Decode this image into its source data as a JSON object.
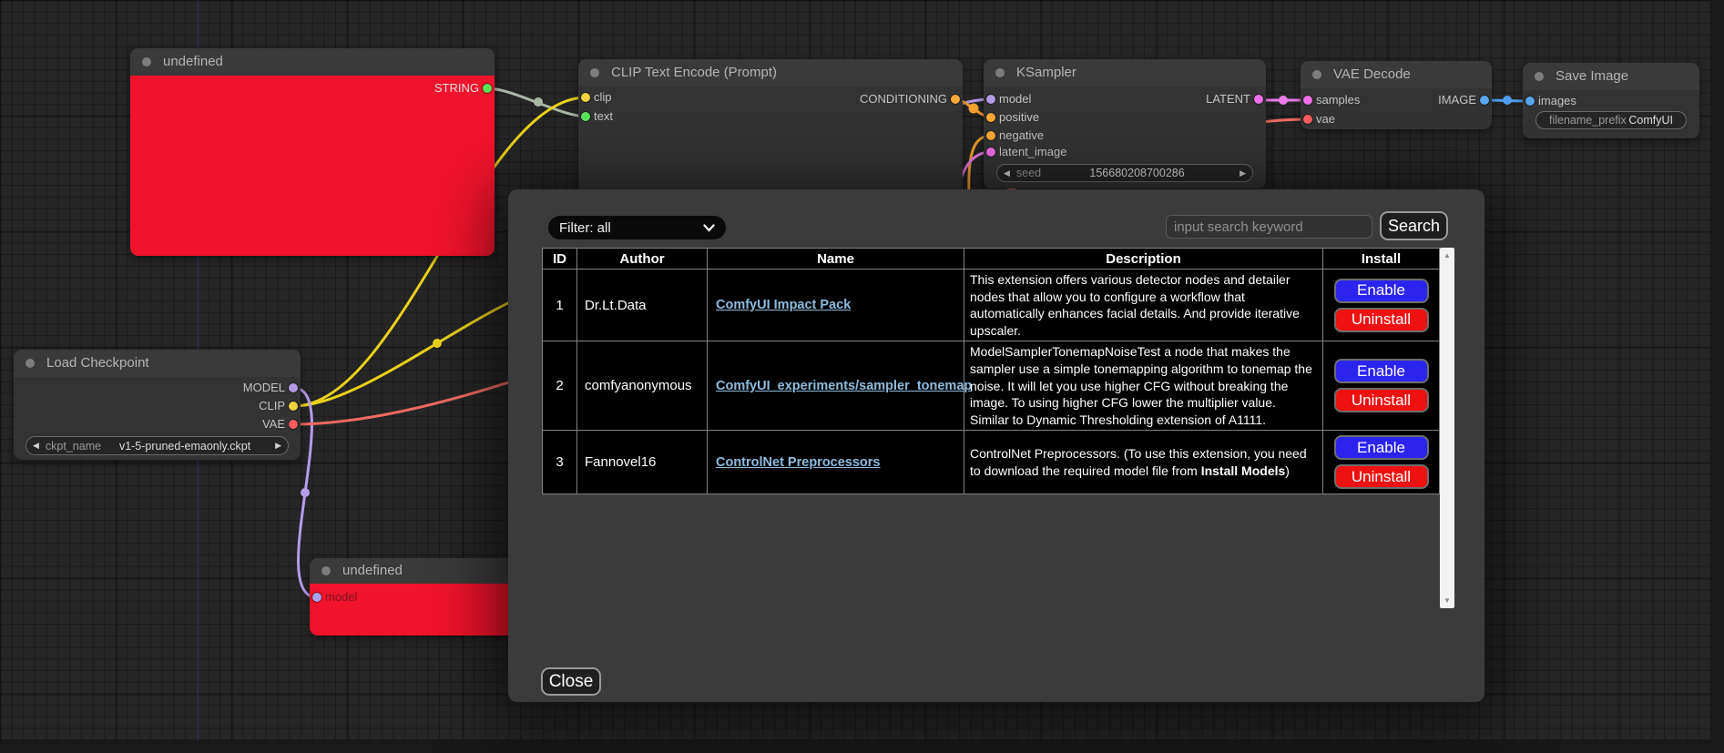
{
  "canvas": {
    "nodes": {
      "undefined_top": {
        "title": "undefined",
        "output_label": "STRING"
      },
      "clip_text_encode": {
        "title": "CLIP Text Encode (Prompt)",
        "input_clip": "clip",
        "input_text": "text",
        "output_label": "CONDITIONING"
      },
      "ksampler": {
        "title": "KSampler",
        "input_model": "model",
        "input_positive": "positive",
        "input_negative": "negative",
        "input_latent": "latent_image",
        "output_label": "LATENT",
        "seed_label": "seed",
        "seed_value": "156680208700286"
      },
      "vae_decode": {
        "title": "VAE Decode",
        "input_samples": "samples",
        "input_vae": "vae",
        "output_label": "IMAGE"
      },
      "save_image": {
        "title": "Save Image",
        "input_images": "images",
        "widget_label": "filename_prefix",
        "widget_value": "ComfyUI"
      },
      "load_checkpoint": {
        "title": "Load Checkpoint",
        "out_model": "MODEL",
        "out_clip": "CLIP",
        "out_vae": "VAE",
        "widget_label": "ckpt_name",
        "widget_value": "v1-5-pruned-emaonly.ckpt"
      },
      "undefined_bottom": {
        "title": "undefined",
        "input_model": "model"
      }
    }
  },
  "modal": {
    "filter_value": "Filter: all",
    "search_placeholder": "input search keyword",
    "search_button_label": "Search",
    "close_button_label": "Close",
    "table": {
      "headers": [
        "ID",
        "Author",
        "Name",
        "Description",
        "Install"
      ],
      "rows": [
        {
          "id": "1",
          "author": "Dr.Lt.Data",
          "name": "ComfyUI Impact Pack",
          "description": "This extension offers various detector nodes and detailer nodes that allow you to configure a workflow that automatically enhances facial details. And provide iterative upscaler.",
          "description_bold": "",
          "description_suffix": "",
          "enable_label": "Enable",
          "uninstall_label": "Uninstall"
        },
        {
          "id": "2",
          "author": "comfyanonymous",
          "name": "ComfyUI_experiments/sampler_tonemap",
          "description": "ModelSamplerTonemapNoiseTest a node that makes the sampler use a simple tonemapping algorithm to tonemap the noise. It will let you use higher CFG without breaking the image. To using higher CFG lower the multiplier value. Similar to Dynamic Thresholding extension of A1111.",
          "description_bold": "",
          "description_suffix": "",
          "enable_label": "Enable",
          "uninstall_label": "Uninstall"
        },
        {
          "id": "3",
          "author": "Fannovel16",
          "name": "ControlNet Preprocessors",
          "description": "ControlNet Preprocessors. (To use this extension, you need to download the required model file from ",
          "description_bold": "Install Models",
          "description_suffix": ")",
          "enable_label": "Enable",
          "uninstall_label": "Uninstall"
        }
      ]
    }
  },
  "colors": {
    "enable_button": "#2b24ef",
    "uninstall_button": "#ee1111",
    "error_node_body": "#f0132b",
    "link_text": "#8cbcdf",
    "wire_model": "#b79ce8",
    "wire_clip": "#e8d11c",
    "wire_vae": "#ef6a62",
    "wire_latent": "#ee7ce8",
    "wire_image": "#4f9ef0",
    "wire_conditioning": "#f5a12e",
    "wire_string": "#a9b8a5",
    "slot_model": "#b49ce4",
    "slot_clip": "#f0d23c",
    "slot_vae": "#ff5c5c",
    "slot_conditioning": "#ffaa38",
    "slot_latent": "#f06ee6",
    "slot_image": "#58a6f0",
    "slot_string": "#58e458"
  }
}
